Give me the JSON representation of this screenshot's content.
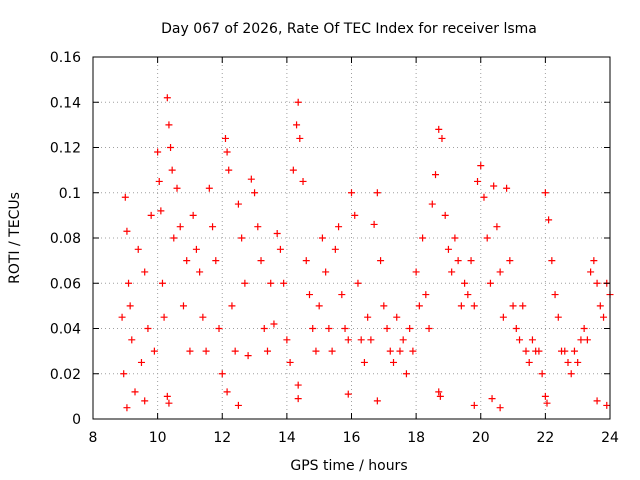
{
  "chart_data": {
    "type": "scatter",
    "title": "Day 067 of 2026, Rate Of TEC Index for receiver lsma",
    "xlabel": "GPS time / hours",
    "ylabel": "ROTI / TECUs",
    "xlim": [
      8,
      24
    ],
    "ylim": [
      0,
      0.16
    ],
    "xticks": [
      8,
      10,
      12,
      14,
      16,
      18,
      20,
      22,
      24
    ],
    "yticks": [
      0,
      0.02,
      0.04,
      0.06,
      0.08,
      0.1,
      0.12,
      0.14,
      0.16
    ],
    "xtick_labels": [
      "8",
      "10",
      "12",
      "14",
      "16",
      "18",
      "20",
      "22",
      "24"
    ],
    "ytick_labels": [
      "0",
      "0.02",
      "0.04",
      "0.06",
      "0.08",
      "0.1",
      "0.12",
      "0.14",
      "0.16"
    ],
    "grid": true,
    "marker": "+",
    "color": "#ff0000",
    "series": [
      {
        "name": "ROTI",
        "x": [
          8.9,
          8.95,
          9.0,
          9.05,
          9.1,
          9.15,
          9.2,
          9.3,
          9.4,
          9.5,
          9.6,
          9.7,
          9.8,
          9.9,
          10.0,
          10.05,
          10.1,
          10.15,
          10.2,
          10.3,
          10.35,
          10.4,
          10.45,
          10.5,
          10.6,
          10.7,
          10.8,
          10.9,
          11.0,
          11.1,
          11.2,
          11.3,
          11.4,
          11.5,
          11.6,
          11.7,
          11.8,
          11.9,
          12.0,
          12.1,
          12.15,
          12.2,
          12.3,
          12.4,
          12.5,
          12.6,
          12.7,
          12.8,
          12.9,
          13.0,
          13.1,
          13.2,
          13.3,
          13.4,
          13.5,
          13.6,
          13.7,
          13.8,
          13.9,
          14.0,
          14.1,
          14.2,
          14.3,
          14.35,
          14.4,
          14.5,
          14.6,
          14.7,
          14.8,
          14.9,
          15.0,
          15.1,
          15.2,
          15.3,
          15.4,
          15.5,
          15.6,
          15.7,
          15.8,
          15.9,
          16.0,
          16.1,
          16.2,
          16.3,
          16.4,
          16.5,
          16.6,
          16.7,
          16.8,
          16.9,
          17.0,
          17.1,
          17.2,
          17.3,
          17.4,
          17.5,
          17.6,
          17.7,
          17.8,
          17.9,
          18.0,
          18.1,
          18.2,
          18.3,
          18.4,
          18.5,
          18.6,
          18.7,
          18.8,
          18.9,
          19.0,
          19.1,
          19.2,
          19.3,
          19.4,
          19.5,
          19.6,
          19.7,
          19.8,
          19.9,
          20.0,
          20.1,
          20.2,
          20.3,
          20.4,
          20.5,
          20.6,
          20.7,
          20.8,
          20.9,
          21.0,
          21.1,
          21.2,
          21.3,
          21.4,
          21.5,
          21.6,
          21.7,
          21.8,
          21.9,
          22.0,
          22.1,
          22.2,
          22.3,
          22.4,
          22.5,
          22.6,
          22.7,
          22.8,
          22.9,
          23.0,
          23.1,
          23.2,
          23.3,
          23.4,
          23.5,
          23.6,
          23.7,
          23.8,
          23.9,
          24.0,
          9.05,
          9.6,
          10.3,
          10.35,
          12.15,
          12.5,
          14.35,
          14.35,
          15.9,
          16.8,
          18.7,
          18.75,
          19.8,
          20.35,
          20.6,
          22.0,
          22.05,
          23.6,
          23.9
        ],
        "y": [
          0.045,
          0.02,
          0.098,
          0.083,
          0.06,
          0.05,
          0.035,
          0.012,
          0.075,
          0.025,
          0.065,
          0.04,
          0.09,
          0.03,
          0.118,
          0.105,
          0.092,
          0.06,
          0.045,
          0.142,
          0.13,
          0.12,
          0.11,
          0.08,
          0.102,
          0.085,
          0.05,
          0.07,
          0.03,
          0.09,
          0.075,
          0.065,
          0.045,
          0.03,
          0.102,
          0.085,
          0.07,
          0.04,
          0.02,
          0.124,
          0.118,
          0.11,
          0.05,
          0.03,
          0.095,
          0.08,
          0.06,
          0.028,
          0.106,
          0.1,
          0.085,
          0.07,
          0.04,
          0.03,
          0.06,
          0.042,
          0.082,
          0.075,
          0.06,
          0.035,
          0.025,
          0.11,
          0.13,
          0.14,
          0.124,
          0.105,
          0.07,
          0.055,
          0.04,
          0.03,
          0.05,
          0.08,
          0.065,
          0.04,
          0.03,
          0.075,
          0.085,
          0.055,
          0.04,
          0.035,
          0.1,
          0.09,
          0.06,
          0.035,
          0.025,
          0.045,
          0.035,
          0.086,
          0.1,
          0.07,
          0.05,
          0.04,
          0.03,
          0.025,
          0.045,
          0.03,
          0.035,
          0.02,
          0.04,
          0.03,
          0.065,
          0.05,
          0.08,
          0.055,
          0.04,
          0.095,
          0.108,
          0.128,
          0.124,
          0.09,
          0.075,
          0.065,
          0.08,
          0.07,
          0.05,
          0.06,
          0.055,
          0.07,
          0.05,
          0.105,
          0.112,
          0.098,
          0.08,
          0.06,
          0.103,
          0.085,
          0.065,
          0.045,
          0.102,
          0.07,
          0.05,
          0.04,
          0.035,
          0.05,
          0.03,
          0.025,
          0.035,
          0.03,
          0.03,
          0.02,
          0.1,
          0.088,
          0.07,
          0.055,
          0.045,
          0.03,
          0.03,
          0.025,
          0.02,
          0.03,
          0.025,
          0.035,
          0.04,
          0.035,
          0.065,
          0.07,
          0.06,
          0.05,
          0.045,
          0.06,
          0.055,
          0.005,
          0.008,
          0.01,
          0.007,
          0.012,
          0.006,
          0.015,
          0.009,
          0.011,
          0.008,
          0.012,
          0.01,
          0.006,
          0.009,
          0.005,
          0.01,
          0.007,
          0.008,
          0.006
        ]
      }
    ]
  }
}
